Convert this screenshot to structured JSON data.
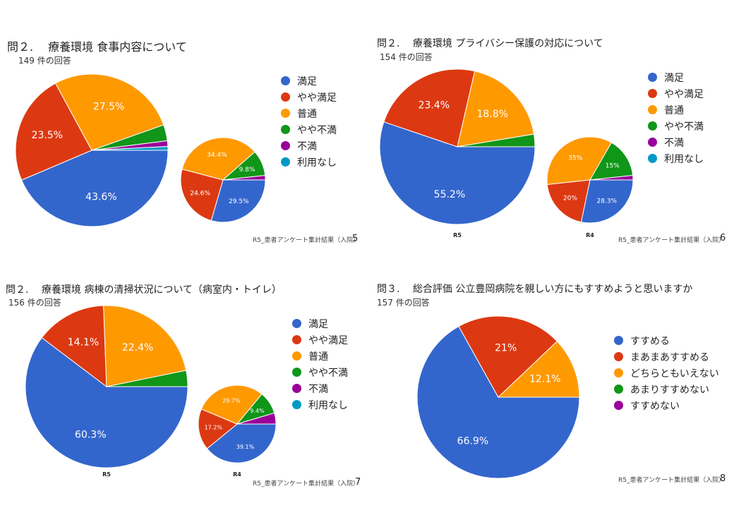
{
  "colors": {
    "blue": "#3366cc",
    "red": "#dc3912",
    "orange": "#ff9900",
    "green": "#109618",
    "purple": "#990099",
    "cyan": "#0099c6"
  },
  "footer_text": "R5_患者アンケート集計結果（入院）",
  "chart_data": [
    {
      "type": "pie",
      "title": "問２.　 療養環境  食事内容について",
      "subtitle": "149 件の回答",
      "page": "5",
      "legend": [
        "満足",
        "やや満足",
        "普通",
        "やや不満",
        "不満",
        "利用なし"
      ],
      "pies": [
        {
          "name": "",
          "values": [
            43.6,
            23.5,
            27.5,
            3.4,
            1.2,
            0.8
          ],
          "labels": [
            "43.6%",
            "23.5%",
            "27.5%",
            "",
            "",
            ""
          ]
        },
        {
          "name": "",
          "values": [
            29.5,
            24.6,
            34.4,
            9.8,
            1.7,
            0
          ],
          "labels": [
            "29.5%",
            "24.6%",
            "34.4%",
            "9.8%",
            "",
            ""
          ]
        }
      ]
    },
    {
      "type": "pie",
      "title": "問２.　 療養環境  プライバシー保護の対応について",
      "subtitle": "154 件の回答",
      "page": "6",
      "legend": [
        "満足",
        "やや満足",
        "普通",
        "やや不満",
        "不満",
        "利用なし"
      ],
      "pies": [
        {
          "name": "R5",
          "values": [
            55.2,
            23.4,
            18.8,
            2.6,
            0,
            0
          ],
          "labels": [
            "55.2%",
            "23.4%",
            "18.8%",
            "",
            "",
            ""
          ]
        },
        {
          "name": "R4",
          "values": [
            28.3,
            20,
            35,
            15,
            1.7,
            0
          ],
          "labels": [
            "28.3%",
            "20%",
            "35%",
            "15%",
            "",
            ""
          ]
        }
      ]
    },
    {
      "type": "pie",
      "title": "問２.　 療養環境  病棟の清掃状況について（病室内・トイレ）",
      "subtitle": "156 件の回答",
      "page": "7",
      "legend": [
        "満足",
        "やや満足",
        "普通",
        "やや不満",
        "不満",
        "利用なし"
      ],
      "pies": [
        {
          "name": "R5",
          "values": [
            60.3,
            14.1,
            22.4,
            3.2,
            0,
            0
          ],
          "labels": [
            "60.3%",
            "14.1%",
            "22.4%",
            "",
            "",
            ""
          ]
        },
        {
          "name": "R4",
          "values": [
            39.1,
            17.2,
            29.7,
            9.4,
            4.6,
            0
          ],
          "labels": [
            "39.1%",
            "17.2%",
            "29.7%",
            "9.4%",
            "",
            ""
          ]
        }
      ]
    },
    {
      "type": "pie",
      "title": "問３.　 総合評価  公立豊岡病院を親しい方にもすすめようと思いますか",
      "subtitle": "157 件の回答",
      "page": "8",
      "legend": [
        "すすめる",
        "まあまあすすめる",
        "どちらともいえない",
        "あまりすすめない",
        "すすめない"
      ],
      "pies": [
        {
          "name": "",
          "values": [
            66.9,
            21,
            12.1,
            0,
            0
          ],
          "labels": [
            "66.9%",
            "21%",
            "12.1%",
            "",
            ""
          ]
        }
      ]
    }
  ]
}
